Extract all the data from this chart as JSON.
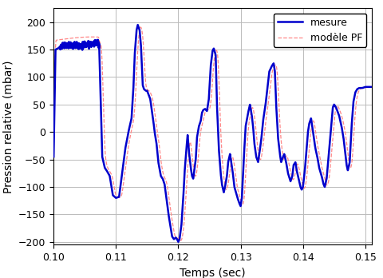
{
  "xlabel": "Temps (sec)",
  "ylabel": "Pression relative (mbar)",
  "xlim": [
    0.1,
    0.151
  ],
  "ylim": [
    -205,
    225
  ],
  "yticks": [
    -200,
    -150,
    -100,
    -50,
    0,
    50,
    100,
    150,
    200
  ],
  "xticks": [
    0.1,
    0.11,
    0.12,
    0.13,
    0.14,
    0.15
  ],
  "legend_mesure": "mesure",
  "legend_modele": "modèle PF",
  "color_mesure": "#0000CC",
  "color_modele": "#FF8888",
  "lw_mesure": 1.8,
  "lw_modele": 0.9,
  "grid_color": "#bbbbbb",
  "bg_color": "#ffffff"
}
